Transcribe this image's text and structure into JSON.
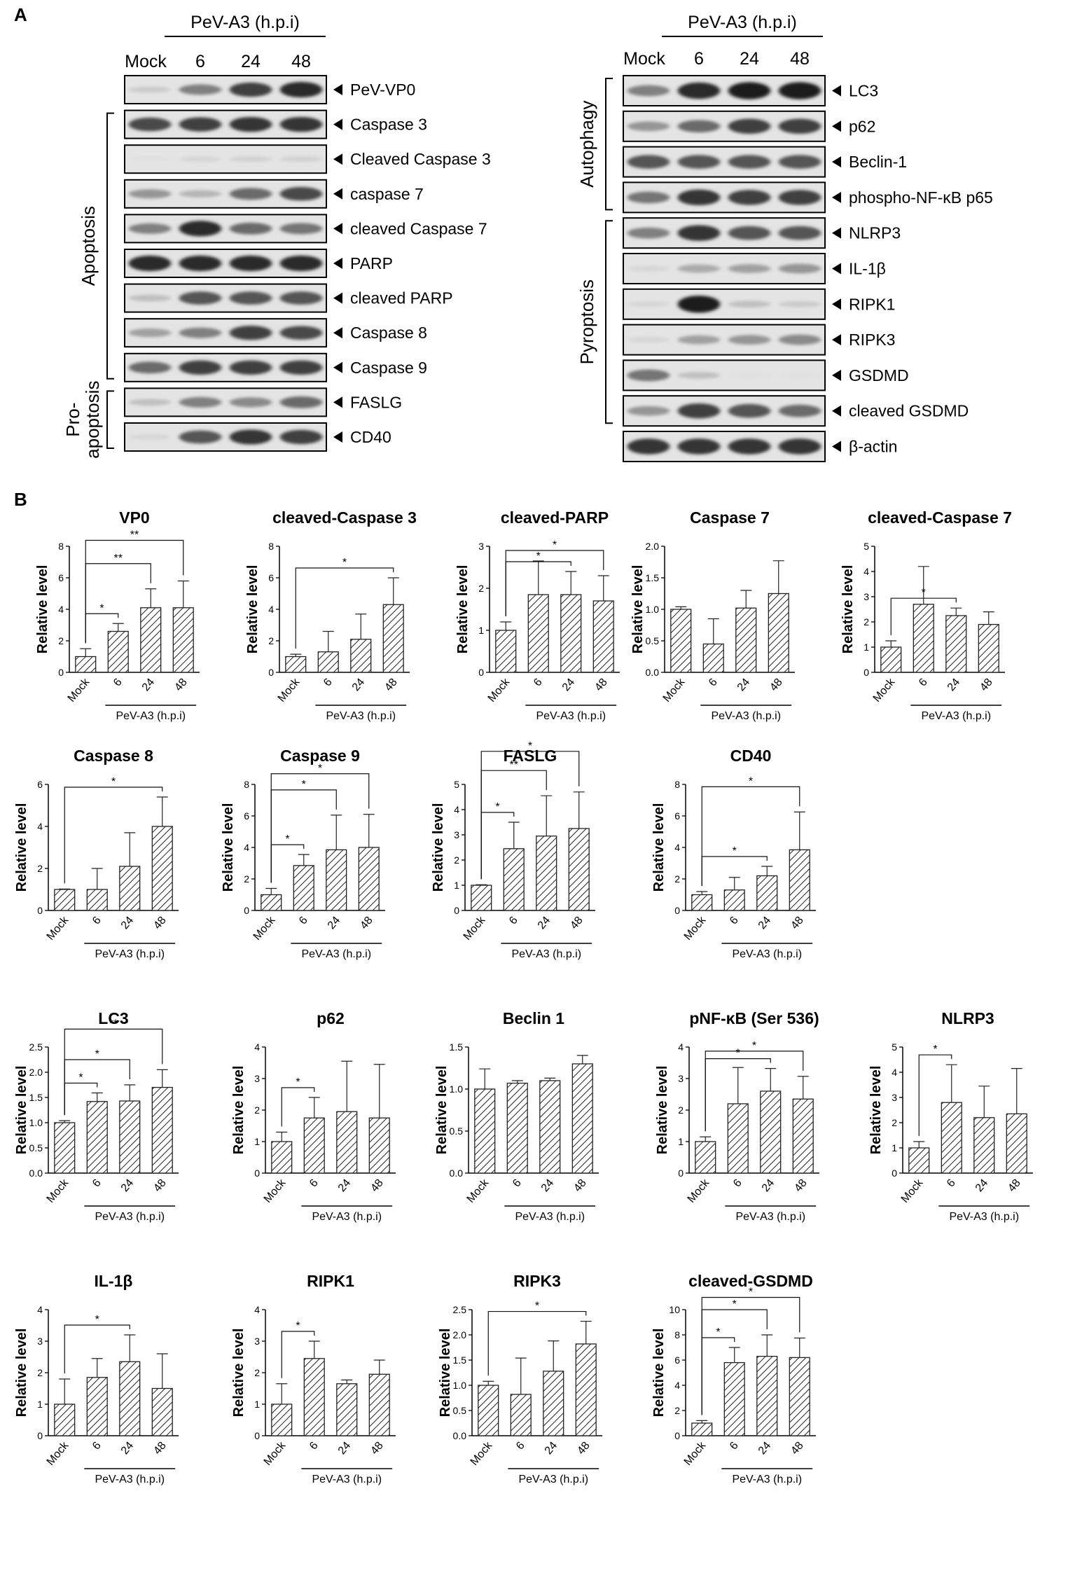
{
  "panel_labels": {
    "a": "A",
    "b": "B"
  },
  "blot_left": {
    "header": "PeV-A3 (h.p.i)",
    "columns": [
      "Mock",
      "6",
      "24",
      "48"
    ],
    "groups": [
      {
        "label": "Apoptosis",
        "from": 1,
        "to": 8
      },
      {
        "label": "Pro-",
        "from": 9,
        "to": 10
      },
      {
        "label": "apoptosis",
        "from": 9,
        "to": 10
      }
    ],
    "rows": [
      {
        "label": "PeV-VP0",
        "intensity": [
          0.15,
          0.5,
          0.8,
          0.9
        ]
      },
      {
        "label": "Caspase 3",
        "intensity": [
          0.75,
          0.8,
          0.85,
          0.85
        ]
      },
      {
        "label": "Cleaved Caspase 3",
        "intensity": [
          0.05,
          0.1,
          0.12,
          0.12
        ]
      },
      {
        "label": "caspase 7",
        "intensity": [
          0.4,
          0.25,
          0.6,
          0.75
        ]
      },
      {
        "label": "cleaved Caspase 7",
        "intensity": [
          0.5,
          0.9,
          0.6,
          0.55
        ]
      },
      {
        "label": "PARP",
        "intensity": [
          0.9,
          0.9,
          0.9,
          0.9
        ]
      },
      {
        "label": "cleaved PARP",
        "intensity": [
          0.2,
          0.7,
          0.7,
          0.7
        ]
      },
      {
        "label": "Caspase 8",
        "intensity": [
          0.35,
          0.5,
          0.8,
          0.75
        ]
      },
      {
        "label": "Caspase 9",
        "intensity": [
          0.6,
          0.8,
          0.8,
          0.8
        ]
      },
      {
        "label": "FASLG",
        "intensity": [
          0.2,
          0.5,
          0.45,
          0.6
        ]
      },
      {
        "label": "CD40",
        "intensity": [
          0.1,
          0.7,
          0.85,
          0.8
        ]
      }
    ]
  },
  "blot_right": {
    "header": "PeV-A3 (h.p.i)",
    "columns": [
      "Mock",
      "6",
      "24",
      "48"
    ],
    "groups": [
      {
        "label": "Autophagy",
        "from": 0,
        "to": 3
      },
      {
        "label": "Pyroptosis",
        "from": 4,
        "to": 9
      }
    ],
    "rows": [
      {
        "label": "LC3",
        "intensity": [
          0.5,
          0.9,
          0.95,
          0.95
        ]
      },
      {
        "label": "p62",
        "intensity": [
          0.4,
          0.6,
          0.8,
          0.8
        ]
      },
      {
        "label": "Beclin-1",
        "intensity": [
          0.7,
          0.7,
          0.7,
          0.7
        ]
      },
      {
        "label": "phospho-NF-κB p65",
        "intensity": [
          0.55,
          0.85,
          0.8,
          0.8
        ]
      },
      {
        "label": "NLRP3",
        "intensity": [
          0.5,
          0.85,
          0.7,
          0.7
        ]
      },
      {
        "label": "IL-1β",
        "intensity": [
          0.1,
          0.3,
          0.35,
          0.4
        ]
      },
      {
        "label": "RIPK1",
        "intensity": [
          0.1,
          0.95,
          0.2,
          0.15
        ]
      },
      {
        "label": "RIPK3",
        "intensity": [
          0.1,
          0.35,
          0.4,
          0.45
        ]
      },
      {
        "label": "GSDMD",
        "intensity": [
          0.55,
          0.2,
          0.05,
          0.05
        ]
      },
      {
        "label": "cleaved GSDMD",
        "intensity": [
          0.4,
          0.8,
          0.7,
          0.6
        ]
      },
      {
        "label": "β-actin",
        "intensity": [
          0.85,
          0.85,
          0.85,
          0.85
        ]
      }
    ]
  },
  "chart_data": [
    {
      "type": "bar",
      "title": "VP0",
      "ylabel": "Relative level",
      "xlabel": "PeV-A3 (h.p.i)",
      "categories": [
        "Mock",
        "6",
        "24",
        "48"
      ],
      "values": [
        1,
        2.6,
        4.1,
        4.1
      ],
      "errors": [
        0.5,
        0.5,
        1.2,
        1.7
      ],
      "ylim": [
        0,
        8
      ],
      "yticks": [
        0,
        2,
        4,
        6,
        8
      ],
      "significance": [
        {
          "from": 0,
          "to": 1,
          "label": "*"
        },
        {
          "from": 0,
          "to": 2,
          "label": "**"
        },
        {
          "from": 0,
          "to": 3,
          "label": "**"
        }
      ]
    },
    {
      "type": "bar",
      "title": "cleaved-Caspase 3",
      "ylabel": "Relative level",
      "xlabel": "PeV-A3 (h.p.i)",
      "categories": [
        "Mock",
        "6",
        "24",
        "48"
      ],
      "values": [
        1,
        1.3,
        2.1,
        4.3
      ],
      "errors": [
        0.15,
        1.3,
        1.6,
        1.7
      ],
      "ylim": [
        0,
        8
      ],
      "yticks": [
        0,
        2,
        4,
        6,
        8
      ],
      "significance": [
        {
          "from": 0,
          "to": 3,
          "label": "*"
        }
      ]
    },
    {
      "type": "bar",
      "title": "cleaved-PARP",
      "ylabel": "Relative level",
      "xlabel": "PeV-A3 (h.p.i)",
      "categories": [
        "Mock",
        "6",
        "24",
        "48"
      ],
      "values": [
        1,
        1.85,
        1.85,
        1.7
      ],
      "errors": [
        0.2,
        0.8,
        0.55,
        0.6
      ],
      "ylim": [
        0,
        3
      ],
      "yticks": [
        0,
        1,
        2,
        3
      ],
      "significance": [
        {
          "from": 0,
          "to": 2,
          "label": "*"
        },
        {
          "from": 0,
          "to": 3,
          "label": "*"
        }
      ]
    },
    {
      "type": "bar",
      "title": "Caspase 7",
      "ylabel": "Relative level",
      "xlabel": "PeV-A3 (h.p.i)",
      "categories": [
        "Mock",
        "6",
        "24",
        "48"
      ],
      "values": [
        1,
        0.45,
        1.02,
        1.25
      ],
      "errors": [
        0.04,
        0.4,
        0.28,
        0.52
      ],
      "ylim": [
        0,
        2
      ],
      "yticks": [
        0.0,
        0.5,
        1.0,
        1.5,
        2.0
      ],
      "significance": []
    },
    {
      "type": "bar",
      "title": "cleaved-Caspase 7",
      "ylabel": "Relative level",
      "xlabel": "PeV-A3 (h.p.i)",
      "categories": [
        "Mock",
        "6",
        "24",
        "48"
      ],
      "values": [
        1,
        2.7,
        2.25,
        1.9
      ],
      "errors": [
        0.25,
        1.5,
        0.3,
        0.5
      ],
      "ylim": [
        0,
        5
      ],
      "yticks": [
        0,
        1,
        2,
        3,
        4,
        5
      ],
      "significance": [
        {
          "from": 0,
          "to": 2,
          "label": "*"
        }
      ]
    },
    {
      "type": "bar",
      "title": "Caspase 8",
      "ylabel": "Relative level",
      "xlabel": "PeV-A3 (h.p.i)",
      "categories": [
        "Mock",
        "6",
        "24",
        "48"
      ],
      "values": [
        1,
        1,
        2.1,
        4
      ],
      "errors": [
        0.02,
        1,
        1.6,
        1.4
      ],
      "ylim": [
        0,
        6
      ],
      "yticks": [
        0,
        2,
        4,
        6
      ],
      "significance": [
        {
          "from": 0,
          "to": 3,
          "label": "*"
        }
      ]
    },
    {
      "type": "bar",
      "title": "Caspase 9",
      "ylabel": "Relative level",
      "xlabel": "PeV-A3 (h.p.i)",
      "categories": [
        "Mock",
        "6",
        "24",
        "48"
      ],
      "values": [
        1,
        2.85,
        3.85,
        4
      ],
      "errors": [
        0.4,
        0.7,
        2.2,
        2.1
      ],
      "ylim": [
        0,
        8
      ],
      "yticks": [
        0,
        2,
        4,
        6,
        8
      ],
      "significance": [
        {
          "from": 0,
          "to": 1,
          "label": "*"
        },
        {
          "from": 0,
          "to": 2,
          "label": "*"
        },
        {
          "from": 0,
          "to": 3,
          "label": "*"
        }
      ]
    },
    {
      "type": "bar",
      "title": "FASLG",
      "ylabel": "Relative level",
      "xlabel": "PeV-A3 (h.p.i)",
      "categories": [
        "Mock",
        "6",
        "24",
        "48"
      ],
      "values": [
        1,
        2.45,
        2.95,
        3.25
      ],
      "errors": [
        0.02,
        1.05,
        1.6,
        1.45
      ],
      "ylim": [
        0,
        5
      ],
      "yticks": [
        0,
        1,
        2,
        3,
        4,
        5
      ],
      "significance": [
        {
          "from": 0,
          "to": 1,
          "label": "*"
        },
        {
          "from": 0,
          "to": 2,
          "label": "**"
        },
        {
          "from": 0,
          "to": 3,
          "label": "*"
        }
      ]
    },
    {
      "type": "bar",
      "title": "CD40",
      "ylabel": "Relative level",
      "xlabel": "PeV-A3 (h.p.i)",
      "categories": [
        "Mock",
        "6",
        "24",
        "48"
      ],
      "values": [
        1,
        1.3,
        2.2,
        3.85
      ],
      "errors": [
        0.2,
        0.8,
        0.6,
        2.4
      ],
      "ylim": [
        0,
        8
      ],
      "yticks": [
        0,
        2,
        4,
        6,
        8
      ],
      "significance": [
        {
          "from": 0,
          "to": 2,
          "label": "*"
        },
        {
          "from": 0,
          "to": 3,
          "label": "*"
        }
      ]
    },
    {
      "type": "bar",
      "title": "LC3",
      "ylabel": "Relative level",
      "xlabel": "PeV-A3 (h.p.i)",
      "categories": [
        "Mock",
        "6",
        "24",
        "48"
      ],
      "values": [
        1,
        1.42,
        1.43,
        1.7
      ],
      "errors": [
        0.04,
        0.17,
        0.32,
        0.35
      ],
      "ylim": [
        0,
        2.5
      ],
      "yticks": [
        0.0,
        0.5,
        1.0,
        1.5,
        2.0,
        2.5
      ],
      "significance": [
        {
          "from": 0,
          "to": 1,
          "label": "*"
        },
        {
          "from": 0,
          "to": 2,
          "label": "*"
        },
        {
          "from": 0,
          "to": 3,
          "label": "**"
        }
      ]
    },
    {
      "type": "bar",
      "title": "p62",
      "ylabel": "Relative level",
      "xlabel": "PeV-A3 (h.p.i)",
      "categories": [
        "Mock",
        "6",
        "24",
        "48"
      ],
      "values": [
        1,
        1.75,
        1.95,
        1.75
      ],
      "errors": [
        0.3,
        0.65,
        1.6,
        1.7
      ],
      "ylim": [
        0,
        4
      ],
      "yticks": [
        0,
        1,
        2,
        3,
        4
      ],
      "significance": [
        {
          "from": 0,
          "to": 1,
          "label": "*"
        }
      ]
    },
    {
      "type": "bar",
      "title": "Beclin 1",
      "ylabel": "Relative level",
      "xlabel": "PeV-A3 (h.p.i)",
      "categories": [
        "Mock",
        "6",
        "24",
        "48"
      ],
      "values": [
        1,
        1.07,
        1.1,
        1.3
      ],
      "errors": [
        0.24,
        0.03,
        0.03,
        0.1
      ],
      "ylim": [
        0,
        1.5
      ],
      "yticks": [
        0.0,
        0.5,
        1.0,
        1.5
      ],
      "significance": []
    },
    {
      "type": "bar",
      "title": "pNF-κB (Ser 536)",
      "ylabel": "Relative level",
      "xlabel": "PeV-A3 (h.p.i)",
      "categories": [
        "Mock",
        "6",
        "24",
        "48"
      ],
      "values": [
        1,
        2.2,
        2.6,
        2.35
      ],
      "errors": [
        0.15,
        1.15,
        0.72,
        0.72
      ],
      "ylim": [
        0,
        4
      ],
      "yticks": [
        0,
        1,
        2,
        3,
        4
      ],
      "significance": [
        {
          "from": 0,
          "to": 2,
          "label": "*"
        },
        {
          "from": 0,
          "to": 3,
          "label": "*"
        }
      ]
    },
    {
      "type": "bar",
      "title": "NLRP3",
      "ylabel": "Relative level",
      "xlabel": "PeV-A3 (h.p.i)",
      "categories": [
        "Mock",
        "6",
        "24",
        "48"
      ],
      "values": [
        1,
        2.8,
        2.2,
        2.35
      ],
      "errors": [
        0.25,
        1.5,
        1.25,
        1.8
      ],
      "ylim": [
        0,
        5
      ],
      "yticks": [
        0,
        1,
        2,
        3,
        4,
        5
      ],
      "significance": [
        {
          "from": 0,
          "to": 1,
          "label": "*"
        }
      ]
    },
    {
      "type": "bar",
      "title": "IL-1β",
      "ylabel": "Relative level",
      "xlabel": "PeV-A3 (h.p.i)",
      "categories": [
        "Mock",
        "6",
        "24",
        "48"
      ],
      "values": [
        1,
        1.85,
        2.35,
        1.5
      ],
      "errors": [
        0.8,
        0.6,
        0.85,
        1.1
      ],
      "ylim": [
        0,
        4
      ],
      "yticks": [
        0,
        1,
        2,
        3,
        4
      ],
      "significance": [
        {
          "from": 0,
          "to": 2,
          "label": "*"
        }
      ]
    },
    {
      "type": "bar",
      "title": "RIPK1",
      "ylabel": "Relative level",
      "xlabel": "PeV-A3 (h.p.i)",
      "categories": [
        "Mock",
        "6",
        "24",
        "48"
      ],
      "values": [
        1,
        2.45,
        1.65,
        1.95
      ],
      "errors": [
        0.65,
        0.55,
        0.12,
        0.45
      ],
      "ylim": [
        0,
        4
      ],
      "yticks": [
        0,
        1,
        2,
        3,
        4
      ],
      "significance": [
        {
          "from": 0,
          "to": 1,
          "label": "*"
        }
      ]
    },
    {
      "type": "bar",
      "title": "RIPK3",
      "ylabel": "Relative level",
      "xlabel": "PeV-A3 (h.p.i)",
      "categories": [
        "Mock",
        "6",
        "24",
        "48"
      ],
      "values": [
        1,
        0.82,
        1.28,
        1.82
      ],
      "errors": [
        0.08,
        0.72,
        0.6,
        0.45
      ],
      "ylim": [
        0,
        2.5
      ],
      "yticks": [
        0.0,
        0.5,
        1.0,
        1.5,
        2.0,
        2.5
      ],
      "significance": [
        {
          "from": 0,
          "to": 3,
          "label": "*"
        }
      ]
    },
    {
      "type": "bar",
      "title": "cleaved-GSDMD",
      "ylabel": "Relative level",
      "xlabel": "PeV-A3 (h.p.i)",
      "categories": [
        "Mock",
        "6",
        "24",
        "48"
      ],
      "values": [
        1,
        5.8,
        6.3,
        6.2
      ],
      "errors": [
        0.2,
        1.2,
        1.7,
        1.55
      ],
      "ylim": [
        0,
        10
      ],
      "yticks": [
        0,
        2,
        4,
        6,
        8,
        10
      ],
      "significance": [
        {
          "from": 0,
          "to": 1,
          "label": "*"
        },
        {
          "from": 0,
          "to": 2,
          "label": "*"
        },
        {
          "from": 0,
          "to": 3,
          "label": "*"
        }
      ]
    }
  ]
}
